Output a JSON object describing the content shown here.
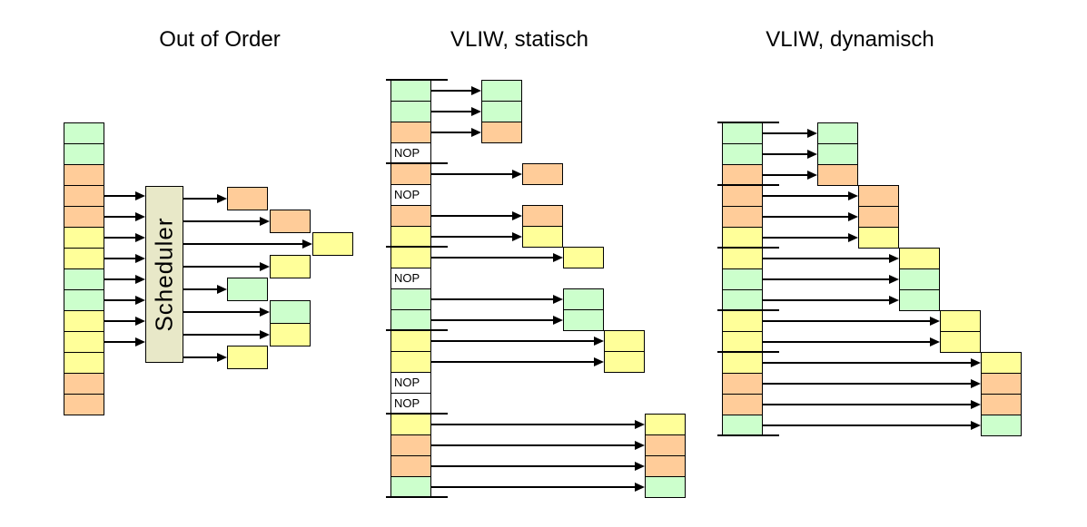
{
  "background": "#ffffff",
  "palette": {
    "green": "#ccffcc",
    "orange": "#ffcc99",
    "yellow": "#ffff99",
    "nop": "#ffffff",
    "scheduler": "#e8e8c8",
    "line": "#000000"
  },
  "panels": {
    "out_of_order": {
      "title": "Out of Order",
      "scheduler_label": "Scheduler",
      "program": [
        "green",
        "green",
        "orange",
        "orange",
        "orange",
        "yellow",
        "yellow",
        "green",
        "green",
        "yellow",
        "yellow",
        "yellow",
        "orange",
        "orange"
      ],
      "window": {
        "start": 3,
        "size": 8
      },
      "issued": [
        {
          "color": "orange",
          "slot": 0
        },
        {
          "color": "orange",
          "slot": 1
        },
        {
          "color": "yellow",
          "slot": 2
        },
        {
          "color": "yellow",
          "slot": 1
        },
        {
          "color": "green",
          "slot": 0
        },
        {
          "color": "green",
          "slot": 1
        },
        {
          "color": "yellow",
          "slot": 1
        },
        {
          "color": "yellow",
          "slot": 0
        }
      ]
    },
    "vliw_static": {
      "title": "VLIW, statisch",
      "nop_label": "NOP",
      "bundle_size": 4,
      "rows": [
        "green",
        "green",
        "orange",
        "NOP",
        "orange",
        "NOP",
        "orange",
        "yellow",
        "yellow",
        "NOP",
        "green",
        "green",
        "yellow",
        "yellow",
        "NOP",
        "NOP",
        "yellow",
        "orange",
        "orange",
        "green"
      ]
    },
    "vliw_dynamic": {
      "title": "VLIW, dynamisch",
      "bundles": [
        3,
        3,
        3,
        2,
        4
      ],
      "rows": [
        "green",
        "green",
        "orange",
        "orange",
        "orange",
        "yellow",
        "yellow",
        "green",
        "green",
        "yellow",
        "yellow",
        "yellow",
        "orange",
        "orange",
        "green"
      ]
    }
  }
}
